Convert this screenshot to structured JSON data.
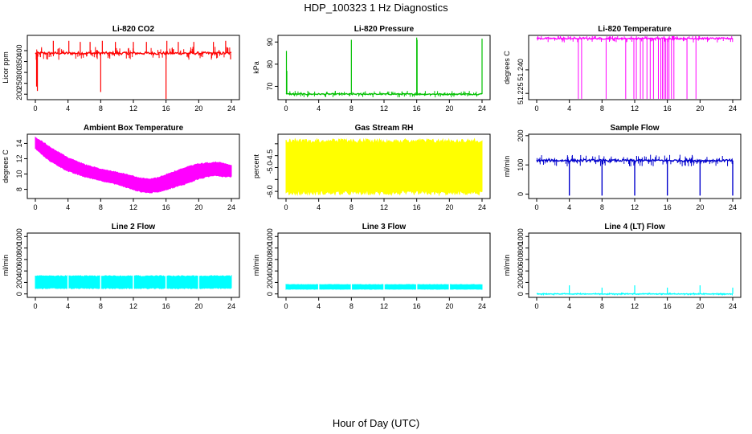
{
  "figure": {
    "title": "HDP_100323  1 Hz Diagnostics",
    "xlabel": "Hour of Day (UTC)"
  },
  "chart_data": [
    {
      "type": "line",
      "title": "Li-820 CO2",
      "ylabel": "Licor ppm",
      "xlim": [
        0,
        24
      ],
      "ylim": [
        175,
        470
      ],
      "x_ticks": [
        0,
        4,
        8,
        12,
        16,
        20,
        24
      ],
      "y_ticks": [
        200,
        250,
        300,
        350,
        400
      ],
      "color": "#ff0000",
      "baseline": 388,
      "noise": 6,
      "spikes": [
        {
          "x": 0.15,
          "y": 235
        },
        {
          "x": 0.25,
          "y": 215
        },
        {
          "x": 2.2,
          "y": 445
        },
        {
          "x": 4.1,
          "y": 445
        },
        {
          "x": 5.5,
          "y": 440
        },
        {
          "x": 6.7,
          "y": 440
        },
        {
          "x": 8.0,
          "y": 210
        },
        {
          "x": 8.2,
          "y": 445
        },
        {
          "x": 9.8,
          "y": 440
        },
        {
          "x": 12.0,
          "y": 440
        },
        {
          "x": 13.6,
          "y": 440
        },
        {
          "x": 16.0,
          "y": 175
        },
        {
          "x": 16.1,
          "y": 445
        },
        {
          "x": 17.5,
          "y": 440
        },
        {
          "x": 19.4,
          "y": 440
        },
        {
          "x": 21.8,
          "y": 440
        },
        {
          "x": 23.3,
          "y": 445
        },
        {
          "x": 23.9,
          "y": 360
        }
      ],
      "x_label_values": [
        "0",
        "4",
        "8",
        "12",
        "16",
        "20",
        "24"
      ],
      "y_label_values": [
        "200",
        "250",
        "300",
        "350",
        "400"
      ]
    },
    {
      "type": "line",
      "title": "Li-820 Pressure",
      "ylabel": "kPa",
      "xlim": [
        0,
        24
      ],
      "ylim": [
        64,
        93
      ],
      "x_ticks": [
        0,
        4,
        8,
        12,
        16,
        20,
        24
      ],
      "y_ticks": [
        70,
        80,
        90
      ],
      "color": "#00c000",
      "baseline": 66.5,
      "noise": 0.3,
      "spikes": [
        {
          "x": 0.05,
          "y": 86
        },
        {
          "x": 0.1,
          "y": 77
        },
        {
          "x": 8.0,
          "y": 91
        },
        {
          "x": 16.0,
          "y": 92
        },
        {
          "x": 16.05,
          "y": 91
        },
        {
          "x": 24.0,
          "y": 91.5
        }
      ],
      "x_label_values": [
        "0",
        "4",
        "8",
        "12",
        "16",
        "20",
        "24"
      ],
      "y_label_values": [
        "70",
        "80",
        "90"
      ]
    },
    {
      "type": "line",
      "title": "Li-820 Temperature",
      "ylabel": "degrees C",
      "xlim": [
        0,
        24
      ],
      "ylim": [
        51.221,
        51.262
      ],
      "x_ticks": [
        0,
        4,
        8,
        12,
        16,
        20,
        24
      ],
      "y_ticks": [
        51.225,
        51.24
      ],
      "color": "#ff00ff",
      "baseline": 51.26,
      "noise": 0.0005,
      "drops_to": 51.221,
      "drops": [
        5.1,
        5.5,
        8.5,
        10.9,
        11.9,
        12.2,
        12.7,
        13.0,
        13.5,
        13.9,
        14.3,
        14.9,
        15.2,
        15.4,
        15.6,
        15.8,
        16.0,
        16.2,
        16.5,
        16.8,
        18.4,
        19.5
      ],
      "x_label_values": [
        "0",
        "4",
        "8",
        "12",
        "16",
        "20",
        "24"
      ],
      "y_label_values": [
        "51.225",
        "51.240"
      ]
    },
    {
      "type": "area",
      "title": "Ambient Box Temperature",
      "ylabel": "degrees C",
      "xlim": [
        0,
        24
      ],
      "ylim": [
        6.8,
        15.2
      ],
      "x_ticks": [
        0,
        4,
        8,
        12,
        16,
        20,
        24
      ],
      "y_ticks": [
        8,
        10,
        12,
        14
      ],
      "color": "#ff00ff",
      "band_x": [
        0,
        1,
        2,
        4,
        6,
        8,
        10,
        12,
        13,
        14,
        15,
        16,
        18,
        20,
        22,
        23,
        24
      ],
      "band_low": [
        13.3,
        12.3,
        11.5,
        10.3,
        9.6,
        9.1,
        8.6,
        7.9,
        7.6,
        7.5,
        7.6,
        7.9,
        8.5,
        9.3,
        9.8,
        9.6,
        9.6
      ],
      "band_high": [
        14.8,
        14.2,
        13.4,
        12.2,
        11.3,
        10.7,
        10.3,
        9.8,
        9.5,
        9.4,
        9.6,
        10.0,
        10.8,
        11.4,
        11.6,
        11.5,
        11.2
      ],
      "x_label_values": [
        "0",
        "4",
        "8",
        "12",
        "16",
        "20",
        "24"
      ],
      "y_label_values": [
        "8",
        "10",
        "12",
        "14"
      ]
    },
    {
      "type": "area",
      "title": "Gas Stream RH",
      "ylabel": "percent",
      "xlim": [
        0,
        24
      ],
      "ylim": [
        -6.3,
        -3.6
      ],
      "x_ticks": [
        0,
        4,
        8,
        12,
        16,
        20,
        24
      ],
      "y_ticks": [
        -6.0,
        -5.5,
        -5.0,
        -4.5,
        -4.0
      ],
      "color": "#ffff00",
      "band_low": -6.15,
      "band_high": -3.8,
      "x_label_values": [
        "0",
        "4",
        "8",
        "12",
        "16",
        "20",
        "24"
      ],
      "y_label_values": [
        "-6.0",
        "",
        "-5.0",
        "-4.5",
        ""
      ]
    },
    {
      "type": "line",
      "title": "Sample Flow",
      "ylabel": "ml/min",
      "xlim": [
        0,
        24
      ],
      "ylim": [
        -15,
        205
      ],
      "x_ticks": [
        0,
        4,
        8,
        12,
        16,
        20,
        24
      ],
      "y_ticks": [
        0,
        100,
        200
      ],
      "color": "#0000cc",
      "baseline": 115,
      "noise": 4,
      "dips": [
        4.0,
        8.0,
        12.0,
        16.0,
        20.0,
        24.0
      ],
      "dip_to": -5,
      "x_label_values": [
        "0",
        "4",
        "8",
        "12",
        "16",
        "20",
        "24"
      ],
      "y_label_values": [
        "0",
        "100",
        "200"
      ]
    },
    {
      "type": "area",
      "title": "Line 2 Flow",
      "ylabel": "ml/min",
      "xlim": [
        0,
        24
      ],
      "ylim": [
        -60,
        1060
      ],
      "x_ticks": [
        0,
        4,
        8,
        12,
        16,
        20,
        24
      ],
      "y_ticks": [
        0,
        200,
        400,
        600,
        800,
        1000
      ],
      "color": "#00ffff",
      "band_low": 90,
      "band_high": 320,
      "gaps": [
        4.0,
        8.0,
        12.0,
        16.0,
        20.0
      ],
      "x_label_values": [
        "0",
        "4",
        "8",
        "12",
        "16",
        "20",
        "24"
      ],
      "y_label_values": [
        "0",
        "200",
        "400",
        "600",
        "800",
        "1000"
      ]
    },
    {
      "type": "area",
      "title": "Line 3 Flow",
      "ylabel": "ml/min",
      "xlim": [
        0,
        24
      ],
      "ylim": [
        -60,
        1060
      ],
      "x_ticks": [
        0,
        4,
        8,
        12,
        16,
        20,
        24
      ],
      "y_ticks": [
        0,
        200,
        400,
        600,
        800,
        1000
      ],
      "color": "#00ffff",
      "band_low": 80,
      "band_high": 165,
      "gaps": [
        4.0,
        8.0,
        12.0,
        16.0,
        20.0
      ],
      "x_label_values": [
        "0",
        "4",
        "8",
        "12",
        "16",
        "20",
        "24"
      ],
      "y_label_values": [
        "0",
        "200",
        "400",
        "600",
        "800",
        "1000"
      ]
    },
    {
      "type": "line",
      "title": "Line 4 (LT) Flow",
      "ylabel": "ml/min",
      "xlim": [
        0,
        24
      ],
      "ylim": [
        -60,
        1060
      ],
      "x_ticks": [
        0,
        4,
        8,
        12,
        16,
        20,
        24
      ],
      "y_ticks": [
        0,
        200,
        400,
        600,
        800,
        1000
      ],
      "color": "#00ffff",
      "baseline": 0,
      "noise": 5,
      "spikes": [
        {
          "x": 4.0,
          "y": 150
        },
        {
          "x": 8.0,
          "y": 110
        },
        {
          "x": 12.0,
          "y": 150
        },
        {
          "x": 16.0,
          "y": 110
        },
        {
          "x": 20.0,
          "y": 150
        },
        {
          "x": 24.0,
          "y": 110
        }
      ],
      "x_label_values": [
        "0",
        "4",
        "8",
        "12",
        "16",
        "20",
        "24"
      ],
      "y_label_values": [
        "0",
        "200",
        "400",
        "600",
        "800",
        "1000"
      ]
    }
  ]
}
